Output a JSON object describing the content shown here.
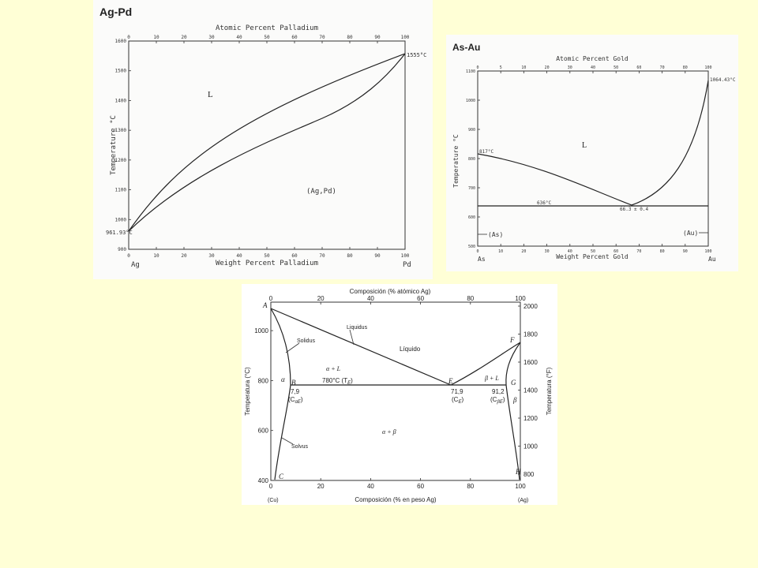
{
  "diagrams": {
    "ag_pd": {
      "title": "Ag-Pd",
      "top_axis_label": "Atomic Percent Palladium",
      "bottom_axis_label": "Weight Percent Palladium",
      "y_axis_label": "Temperature °C",
      "left_element": "Ag",
      "right_element": "Pd",
      "phase_liquid": "L",
      "phase_solid": "(Ag,Pd)",
      "left_melting_point": "961.93°C",
      "right_melting_point": "1555°C",
      "x_ticks": [
        "0",
        "10",
        "20",
        "30",
        "40",
        "50",
        "60",
        "70",
        "80",
        "90",
        "100"
      ],
      "y_ticks": [
        "900",
        "1000",
        "1100",
        "1200",
        "1300",
        "1400",
        "1500",
        "1600"
      ]
    },
    "as_au": {
      "title": "As-Au",
      "top_axis_label": "Atomic Percent Gold",
      "bottom_axis_label": "Weight Percent Gold",
      "y_axis_label": "Temperature °C",
      "left_element": "As",
      "right_element": "Au",
      "phase_liquid": "L",
      "phase_left_solid": "(As)",
      "phase_right_solid": "(Au)",
      "left_melting_point": "817°C",
      "right_melting_point": "1064.43°C",
      "eutectic_temperature": "636°C",
      "eutectic_composition": "66.3 ± 0.4",
      "x_ticks": [
        "0",
        "10",
        "20",
        "30",
        "40",
        "50",
        "60",
        "70",
        "80",
        "90",
        "100"
      ],
      "top_x_ticks": [
        "0",
        "5",
        "10",
        "20",
        "30",
        "40",
        "50",
        "60",
        "70",
        "80",
        "100"
      ],
      "y_ticks": [
        "500",
        "600",
        "700",
        "800",
        "900",
        "1000",
        "1100"
      ]
    },
    "cu_ag": {
      "top_axis_label": "Composición (% atómico Ag)",
      "bottom_axis_label": "Composición (% en peso Ag)",
      "y_left_label": "Temperatura (°C)",
      "y_right_label": "Temperatura (°F)",
      "left_element": "(Cu)",
      "right_element": "(Ag)",
      "label_liquidus": "Liquidus",
      "label_solidus": "Solidus",
      "label_solvus": "Solvus",
      "label_liquid": "Líquido",
      "label_alpha": "α",
      "label_beta": "β",
      "label_alpha_l": "α + L",
      "label_beta_l": "β + L",
      "label_alpha_beta": "α + β",
      "eutectic_temperature": "780°C (T",
      "eutectic_temperature_sub": "E",
      "eutectic_temperature_close": ")",
      "points": [
        "A",
        "B",
        "C",
        "E",
        "F",
        "G",
        "H"
      ],
      "comp_alpha": "7,9",
      "comp_alpha_sym": "(C",
      "comp_alpha_sub": "αE",
      "comp_eutectic": "71,9",
      "comp_eutectic_sym": "(C",
      "comp_eutectic_sub": "E",
      "comp_beta": "91,2",
      "comp_beta_sym": "(C",
      "comp_beta_sub": "βE",
      "close_paren": ")",
      "x_ticks": [
        "0",
        "20",
        "40",
        "60",
        "80",
        "100"
      ],
      "y_left_ticks": [
        "400",
        "600",
        "800",
        "1000"
      ],
      "y_right_ticks": [
        "800",
        "1000",
        "1200",
        "1400",
        "1600",
        "1800",
        "2000"
      ]
    }
  }
}
